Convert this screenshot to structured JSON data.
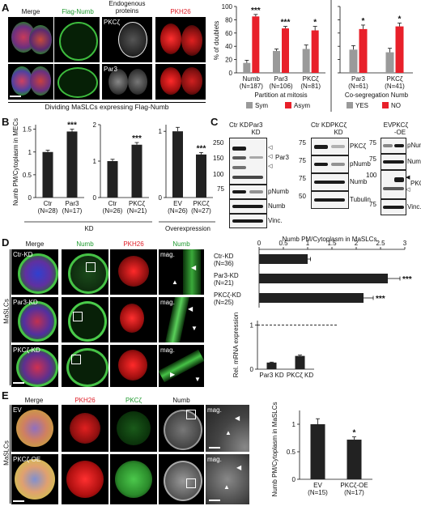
{
  "panelA": {
    "letter": "A",
    "headers": [
      "Merge",
      "Flag-Numb",
      "Endogenous proteins",
      "PKH26"
    ],
    "row_labels": [
      "PKCζ",
      "Par3"
    ],
    "caption": "Dividing MaSLCs expressing Flag-Numb",
    "chart_left": {
      "ylabel": "% of doublets",
      "xlabel": "Partition at mitosis",
      "yticks": [
        "0",
        "20",
        "40",
        "60",
        "80",
        "100"
      ],
      "legend": [
        "Sym",
        "Asym"
      ]
    },
    "chart_right": {
      "xlabel": "Co-segregation Numb",
      "legend": [
        "YES",
        "NO"
      ]
    }
  },
  "panelB": {
    "letter": "B",
    "ylabel": "Numb PM/Cytoplasm in MECs",
    "group_labels": [
      "KD",
      "Overexpression"
    ],
    "yticks_a": [
      "0",
      "0.5",
      "1",
      "1.5"
    ],
    "yticks_b": [
      "0",
      "1",
      "2"
    ],
    "yticks_c": [
      "0",
      "1"
    ]
  },
  "panelC": {
    "letter": "C",
    "blot1": {
      "lanes": [
        "Ctr KD",
        "Par3 KD"
      ],
      "markers": [
        "250",
        "150",
        "100",
        "75"
      ],
      "labels": [
        "Par3",
        "pNumb",
        "Numb",
        "Vinc."
      ]
    },
    "blot2": {
      "lanes": [
        "Ctr KD",
        "PKCζ KD"
      ],
      "markers": [
        "75",
        "75",
        "75",
        "50"
      ],
      "labels": [
        "PKCζ",
        "pNumb",
        "Numb",
        "Tubulin"
      ]
    },
    "blot3": {
      "lanes": [
        "EV",
        "PKCζ -OE"
      ],
      "markers": [
        "75",
        "75",
        "100",
        "75"
      ],
      "labels": [
        "pNumb",
        "Numb",
        "PKCζ",
        "Vinc."
      ]
    }
  },
  "panelD": {
    "letter": "D",
    "headers": [
      "Merge",
      "Numb",
      "PKH26",
      "Numb"
    ],
    "row_labels": [
      "Ctr-KD",
      "Par3-KD",
      "PKCζ-KD"
    ],
    "mag_label": "mag.",
    "side_label": "MaSLCs",
    "chart_title": "Numb PM/Cytoplasm in MaSLCs",
    "xticks": [
      "0",
      "0.5",
      "1",
      "1.5",
      "2",
      "2.5",
      "3"
    ],
    "mrna_ylabel": "Rel. mRNA expression",
    "mrna_yticks": [
      "0",
      "1"
    ],
    "mrna_categories": [
      "Par3 KD",
      "PKCζ KD"
    ]
  },
  "panelE": {
    "letter": "E",
    "headers": [
      "Merge",
      "PKH26",
      "PKCζ",
      "Numb"
    ],
    "row_labels": [
      "EV",
      "PKCζ-OE"
    ],
    "mag_label": "mag.",
    "side_label": "MaSLCs",
    "ylabel": "Numb PM/Cytoplasm in MaSLCs",
    "yticks": [
      "0",
      "0.5",
      "1"
    ]
  },
  "chart_data": [
    {
      "id": "A-left",
      "type": "bar",
      "categories": [
        "Numb (N=187)",
        "Par3 (N=106)",
        "PKCζ (N=81)"
      ],
      "series": [
        {
          "name": "Sym",
          "values": [
            15,
            33,
            36
          ]
        },
        {
          "name": "Asym",
          "values": [
            85,
            67,
            64
          ]
        }
      ],
      "errors": [
        [
          4,
          3,
          6
        ],
        [
          3,
          3,
          6
        ]
      ],
      "significance": [
        "***",
        "***",
        "*"
      ],
      "ylabel": "% of doublets",
      "xlabel": "Partition at mitosis",
      "ylim": [
        0,
        100
      ],
      "colors": [
        "#9a9a9a",
        "#e8202a"
      ]
    },
    {
      "id": "A-right",
      "type": "bar",
      "categories": [
        "Par3 (N=61)",
        "PKCζ (N=41)"
      ],
      "series": [
        {
          "name": "YES",
          "values": [
            35,
            31
          ]
        },
        {
          "name": "NO",
          "values": [
            66,
            70
          ]
        }
      ],
      "errors": [
        [
          6,
          6
        ],
        [
          6,
          5
        ]
      ],
      "significance": [
        "*",
        "*"
      ],
      "xlabel": "Co-segregation Numb",
      "ylim": [
        0,
        100
      ],
      "colors": [
        "#9a9a9a",
        "#e8202a"
      ]
    },
    {
      "id": "B-1",
      "type": "bar",
      "categories": [
        "Ctr (N=28)",
        "Par3 (N=17)"
      ],
      "values": [
        1.0,
        1.45
      ],
      "errors": [
        0.04,
        0.05
      ],
      "significance": [
        "",
        "***"
      ],
      "ylim": [
        0,
        1.6
      ]
    },
    {
      "id": "B-2",
      "type": "bar",
      "categories": [
        "Ctr (N=26)",
        "PKCζ (N=21)"
      ],
      "values": [
        1.0,
        1.45
      ],
      "errors": [
        0.05,
        0.06
      ],
      "significance": [
        "",
        "***"
      ],
      "ylim": [
        0,
        2.0
      ]
    },
    {
      "id": "B-3",
      "type": "bar",
      "categories": [
        "EV (N=26)",
        "PKCζ (N=27)"
      ],
      "values": [
        1.0,
        0.65
      ],
      "errors": [
        0.06,
        0.03
      ],
      "significance": [
        "",
        "***"
      ],
      "ylim": [
        0,
        1.1
      ]
    },
    {
      "id": "D-main",
      "type": "bar",
      "categories": [
        "Ctr-KD (N=36)",
        "Par3-KD (N=21)",
        "PKCζ-KD (N=25)"
      ],
      "values": [
        1.0,
        2.65,
        2.15
      ],
      "errors": [
        0.06,
        0.25,
        0.2
      ],
      "significance": [
        "",
        "***",
        "***"
      ],
      "xlabel": "Numb PM/Cytoplasm in MaSLCs",
      "xlim": [
        0,
        3
      ]
    },
    {
      "id": "D-mrna",
      "type": "bar",
      "categories": [
        "Par3 KD",
        "PKCζ KD"
      ],
      "values": [
        0.15,
        0.3
      ],
      "errors": [
        0.01,
        0.02
      ],
      "ylabel": "Rel. mRNA expression",
      "ylim": [
        0,
        1.1
      ],
      "reference_line": 1
    },
    {
      "id": "E",
      "type": "bar",
      "categories": [
        "EV (N=15)",
        "PKCζ-OE (N=17)"
      ],
      "values": [
        1.0,
        0.72
      ],
      "errors": [
        0.1,
        0.05
      ],
      "significance": [
        "",
        "*"
      ],
      "ylabel": "Numb PM/Cytoplasm in MaSLCs",
      "ylim": [
        0,
        1.25
      ]
    }
  ]
}
